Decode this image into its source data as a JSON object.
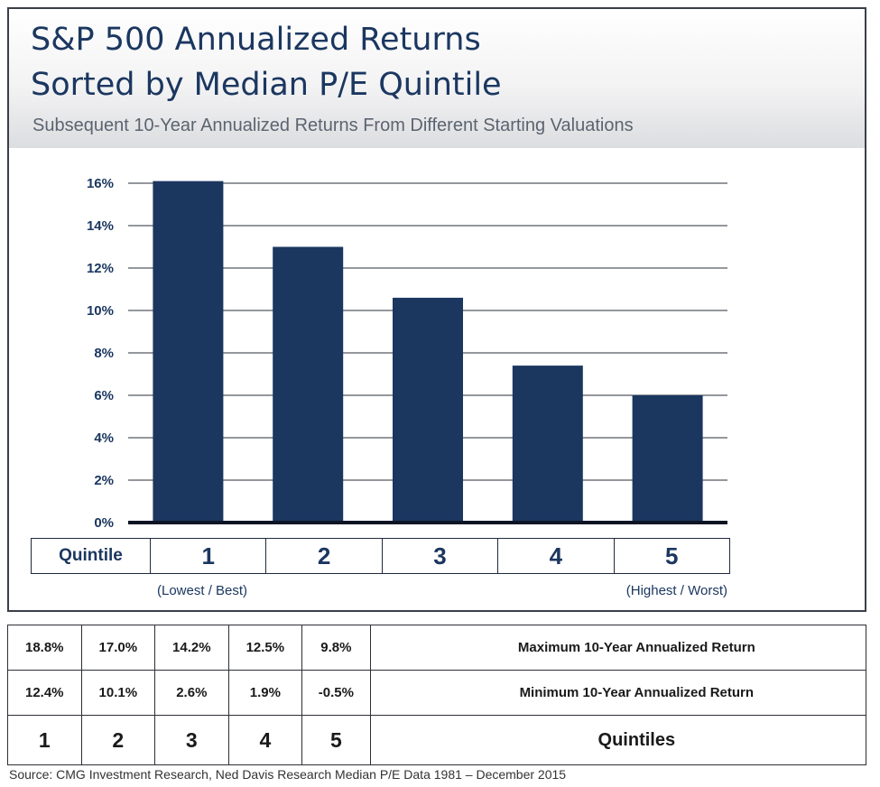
{
  "title_line1": "S&P 500 Annualized Returns",
  "title_line2": "Sorted by Median P/E Quintile",
  "subtitle": "Subsequent 10-Year Annualized Returns From Different Starting Valuations",
  "chart_data": {
    "type": "bar",
    "categories": [
      "1",
      "2",
      "3",
      "4",
      "5"
    ],
    "values": [
      16.1,
      13.0,
      10.6,
      7.4,
      6.0
    ],
    "yticks": [
      "0%",
      "2%",
      "4%",
      "6%",
      "8%",
      "10%",
      "12%",
      "14%",
      "16%"
    ],
    "ylim": [
      0,
      16
    ],
    "grid": true,
    "bar_color": "#1b3760",
    "xlabel": "Quintile",
    "category_notes": {
      "first": "(Lowest / Best)",
      "last": "(Highest / Worst)"
    }
  },
  "stats_table": {
    "rows": [
      {
        "values": [
          "18.8%",
          "17.0%",
          "14.2%",
          "12.5%",
          "9.8%"
        ],
        "label": "Maximum 10-Year Annualized Return"
      },
      {
        "values": [
          "12.4%",
          "10.1%",
          "2.6%",
          "1.9%",
          "-0.5%"
        ],
        "label": "Minimum 10-Year Annualized Return"
      },
      {
        "values": [
          "1",
          "2",
          "3",
          "4",
          "5"
        ],
        "label": "Quintiles"
      }
    ]
  },
  "source": "Source: CMG Investment Research, Ned Davis Research Median P/E Data 1981 – December 2015"
}
